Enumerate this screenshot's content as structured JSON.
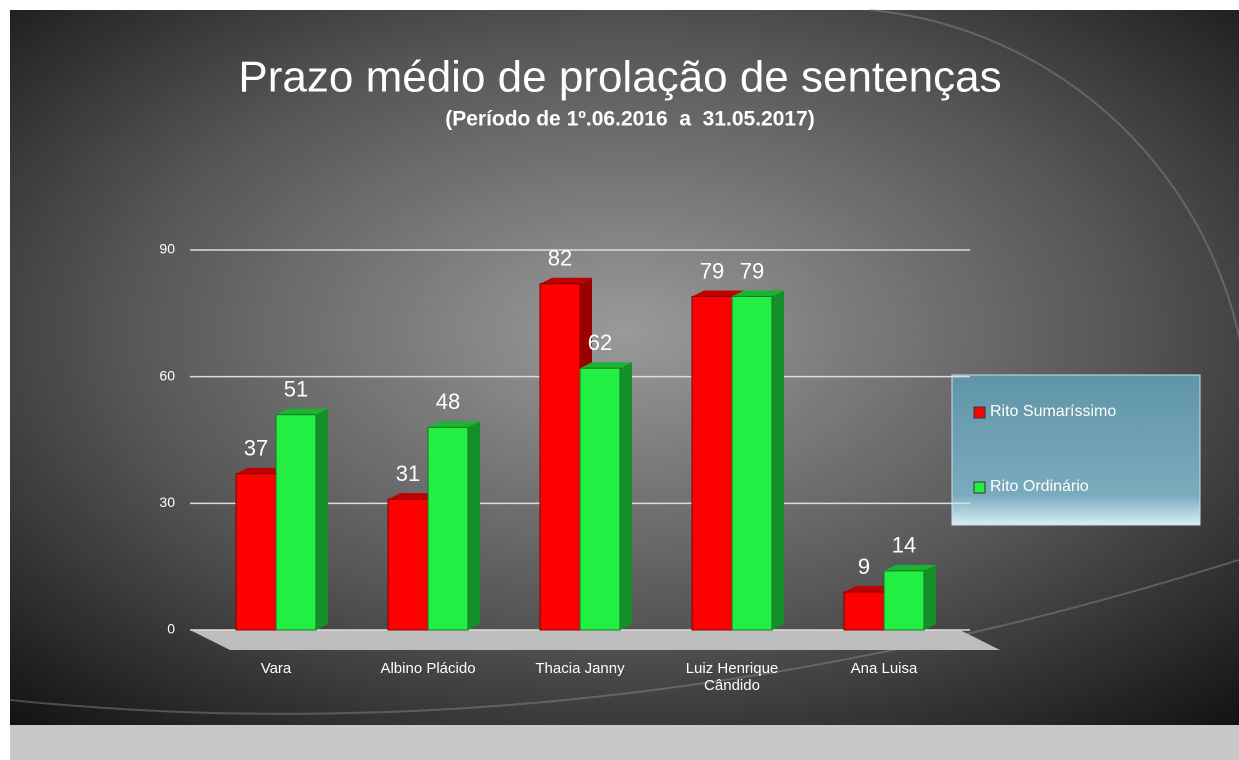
{
  "chart_data": {
    "type": "bar",
    "title": "Prazo médio de prolação de sentenças",
    "subtitle": "(Período de 1º.06.2016  a  31.05.2017)",
    "categories": [
      "Vara",
      "Albino Plácido",
      "Thacia Janny",
      "Luiz Henrique Cândido",
      "Ana Luisa"
    ],
    "series": [
      {
        "name": "Rito Sumaríssimo",
        "color": "#ff0000",
        "values": [
          37,
          31,
          82,
          79,
          9
        ]
      },
      {
        "name": "Rito Ordinário",
        "color": "#22ee44",
        "values": [
          51,
          48,
          62,
          79,
          14
        ]
      }
    ],
    "ylim": [
      0,
      90
    ],
    "yticks": [
      0,
      30,
      60,
      90
    ],
    "grid": true,
    "legend": "right"
  }
}
